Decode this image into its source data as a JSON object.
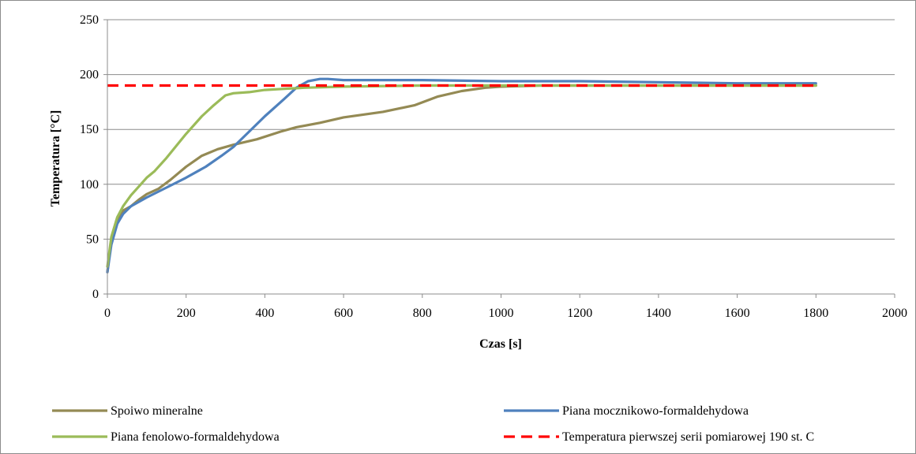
{
  "chart_data": {
    "type": "line",
    "title": "",
    "xlabel": "Czas [s]",
    "ylabel": "Temperatura [°C]",
    "xlim": [
      0,
      2000
    ],
    "ylim": [
      0,
      250
    ],
    "xticks": [
      0,
      200,
      400,
      600,
      800,
      1000,
      1200,
      1400,
      1600,
      1800,
      2000
    ],
    "yticks": [
      0,
      50,
      100,
      150,
      200,
      250
    ],
    "grid": "horizontal",
    "legend_position": "bottom",
    "series": [
      {
        "name": "Spoiwo mineralne",
        "color": "#948a54",
        "dash": "solid",
        "points": [
          [
            0,
            20
          ],
          [
            10,
            50
          ],
          [
            25,
            68
          ],
          [
            40,
            76
          ],
          [
            60,
            80
          ],
          [
            80,
            86
          ],
          [
            100,
            91
          ],
          [
            130,
            96
          ],
          [
            160,
            104
          ],
          [
            200,
            116
          ],
          [
            240,
            126
          ],
          [
            280,
            132
          ],
          [
            320,
            136
          ],
          [
            380,
            141
          ],
          [
            440,
            148
          ],
          [
            480,
            152
          ],
          [
            540,
            156
          ],
          [
            600,
            161
          ],
          [
            700,
            166
          ],
          [
            780,
            172
          ],
          [
            840,
            180
          ],
          [
            900,
            185
          ],
          [
            960,
            188
          ],
          [
            1000,
            189
          ],
          [
            1100,
            190
          ],
          [
            1200,
            190
          ],
          [
            1400,
            190
          ],
          [
            1600,
            190
          ],
          [
            1800,
            190
          ]
        ]
      },
      {
        "name": "Piana mocznikowo-formaldehydowa",
        "color": "#4f81bd",
        "dash": "solid",
        "points": [
          [
            0,
            20
          ],
          [
            10,
            45
          ],
          [
            25,
            64
          ],
          [
            40,
            73
          ],
          [
            60,
            80
          ],
          [
            100,
            88
          ],
          [
            150,
            97
          ],
          [
            200,
            106
          ],
          [
            250,
            116
          ],
          [
            290,
            126
          ],
          [
            320,
            134
          ],
          [
            360,
            148
          ],
          [
            400,
            162
          ],
          [
            450,
            178
          ],
          [
            480,
            188
          ],
          [
            510,
            194
          ],
          [
            540,
            196
          ],
          [
            560,
            196
          ],
          [
            600,
            195
          ],
          [
            700,
            195
          ],
          [
            800,
            195
          ],
          [
            1000,
            194
          ],
          [
            1200,
            194
          ],
          [
            1400,
            193
          ],
          [
            1600,
            192
          ],
          [
            1800,
            192
          ]
        ]
      },
      {
        "name": "Piana fenolowo-formaldehydowa",
        "color": "#9bbb59",
        "dash": "solid",
        "points": [
          [
            0,
            25
          ],
          [
            10,
            52
          ],
          [
            25,
            70
          ],
          [
            40,
            80
          ],
          [
            60,
            90
          ],
          [
            80,
            98
          ],
          [
            100,
            106
          ],
          [
            120,
            112
          ],
          [
            150,
            124
          ],
          [
            200,
            146
          ],
          [
            240,
            162
          ],
          [
            270,
            172
          ],
          [
            300,
            181
          ],
          [
            320,
            183
          ],
          [
            360,
            184
          ],
          [
            400,
            186
          ],
          [
            450,
            187
          ],
          [
            500,
            188
          ],
          [
            600,
            189
          ],
          [
            800,
            190
          ],
          [
            1000,
            190
          ],
          [
            1200,
            190
          ],
          [
            1400,
            190
          ],
          [
            1600,
            190
          ],
          [
            1800,
            190
          ]
        ]
      },
      {
        "name": "Temperatura pierwszej serii pomiarowej 190 st. C",
        "color": "#ff0000",
        "dash": "dashed",
        "points": [
          [
            0,
            190
          ],
          [
            1800,
            190
          ]
        ]
      }
    ]
  }
}
